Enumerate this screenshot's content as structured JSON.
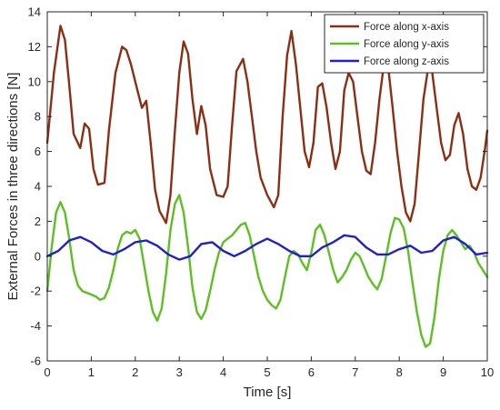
{
  "chart_data": {
    "type": "line",
    "title": "",
    "xlabel": "Time [s]",
    "ylabel": "External Forces in three directions [N]",
    "xlim": [
      0,
      10
    ],
    "ylim": [
      -6,
      14
    ],
    "xticks": [
      "0",
      "1",
      "2",
      "3",
      "4",
      "5",
      "6",
      "7",
      "8",
      "9",
      "10"
    ],
    "yticks": [
      "-6",
      "-4",
      "-2",
      "0",
      "2",
      "4",
      "6",
      "8",
      "10",
      "12",
      "14"
    ],
    "grid": false,
    "legend_position": "top-right",
    "series": [
      {
        "name": "Force along x-axis",
        "color": "#8B2E14",
        "x": [
          0,
          0.15,
          0.3,
          0.4,
          0.5,
          0.6,
          0.75,
          0.85,
          0.95,
          1.05,
          1.15,
          1.3,
          1.4,
          1.55,
          1.7,
          1.8,
          1.9,
          2.05,
          2.15,
          2.25,
          2.35,
          2.45,
          2.55,
          2.7,
          2.8,
          2.9,
          3.0,
          3.1,
          3.2,
          3.3,
          3.4,
          3.5,
          3.6,
          3.7,
          3.85,
          4.0,
          4.1,
          4.2,
          4.3,
          4.45,
          4.55,
          4.65,
          4.75,
          4.85,
          5.0,
          5.15,
          5.25,
          5.35,
          5.45,
          5.55,
          5.65,
          5.75,
          5.85,
          5.95,
          6.05,
          6.15,
          6.25,
          6.35,
          6.45,
          6.55,
          6.65,
          6.75,
          6.85,
          6.95,
          7.05,
          7.15,
          7.25,
          7.35,
          7.45,
          7.55,
          7.65,
          7.75,
          7.85,
          7.95,
          8.05,
          8.15,
          8.25,
          8.35,
          8.45,
          8.55,
          8.65,
          8.75,
          8.85,
          8.95,
          9.05,
          9.15,
          9.25,
          9.35,
          9.45,
          9.55,
          9.65,
          9.75,
          9.85,
          9.95,
          10.0
        ],
        "y": [
          6.5,
          10.5,
          13.2,
          12.4,
          9.8,
          7.0,
          6.2,
          7.6,
          7.3,
          5.0,
          4.1,
          4.2,
          7.2,
          10.5,
          12.0,
          11.8,
          11.0,
          9.5,
          8.5,
          8.9,
          6.5,
          3.8,
          2.6,
          1.9,
          3.5,
          7.2,
          10.5,
          12.3,
          11.6,
          9.0,
          7.0,
          8.6,
          7.5,
          5.0,
          3.5,
          3.4,
          4.0,
          7.5,
          10.6,
          11.3,
          10.0,
          8.0,
          6.0,
          4.5,
          3.5,
          2.8,
          3.5,
          8.0,
          11.5,
          12.9,
          11.0,
          8.5,
          6.0,
          5.1,
          6.5,
          9.7,
          9.9,
          8.5,
          6.5,
          5.0,
          6.0,
          9.5,
          10.5,
          10.0,
          8.0,
          6.0,
          4.9,
          4.7,
          6.5,
          9.0,
          11.0,
          10.8,
          8.5,
          6.0,
          4.0,
          2.5,
          2.0,
          3.0,
          6.0,
          9.0,
          10.7,
          10.5,
          8.5,
          6.5,
          5.5,
          5.8,
          7.5,
          8.2,
          7.0,
          5.0,
          4.0,
          3.8,
          4.5,
          6.2,
          7.2
        ]
      },
      {
        "name": "Force along y-axis",
        "color": "#5DC021",
        "x": [
          0,
          0.1,
          0.2,
          0.3,
          0.4,
          0.5,
          0.6,
          0.7,
          0.8,
          0.9,
          1.0,
          1.1,
          1.2,
          1.3,
          1.4,
          1.5,
          1.6,
          1.7,
          1.8,
          1.9,
          2.0,
          2.1,
          2.2,
          2.3,
          2.4,
          2.5,
          2.6,
          2.7,
          2.8,
          2.9,
          3.0,
          3.1,
          3.2,
          3.3,
          3.4,
          3.5,
          3.6,
          3.7,
          3.8,
          3.9,
          4.0,
          4.1,
          4.2,
          4.3,
          4.4,
          4.5,
          4.6,
          4.7,
          4.8,
          4.9,
          5.0,
          5.1,
          5.2,
          5.3,
          5.4,
          5.5,
          5.6,
          5.7,
          5.8,
          5.9,
          6.0,
          6.1,
          6.2,
          6.3,
          6.4,
          6.5,
          6.6,
          6.7,
          6.8,
          6.9,
          7.0,
          7.1,
          7.2,
          7.3,
          7.4,
          7.5,
          7.6,
          7.7,
          7.8,
          7.9,
          8.0,
          8.1,
          8.2,
          8.3,
          8.4,
          8.5,
          8.6,
          8.7,
          8.8,
          8.9,
          9.0,
          9.1,
          9.2,
          9.3,
          9.4,
          9.5,
          9.6,
          9.7,
          9.8,
          9.9,
          10.0
        ],
        "y": [
          -2.0,
          0.5,
          2.5,
          3.1,
          2.5,
          1.0,
          -0.8,
          -1.7,
          -2.0,
          -2.1,
          -2.2,
          -2.3,
          -2.5,
          -2.4,
          -1.8,
          -0.8,
          0.4,
          1.2,
          1.4,
          1.3,
          1.5,
          1.0,
          -0.5,
          -2.0,
          -3.2,
          -3.7,
          -3.0,
          -1.0,
          1.5,
          3.0,
          3.5,
          2.5,
          0.5,
          -1.8,
          -3.2,
          -3.6,
          -3.1,
          -2.0,
          -0.8,
          0.2,
          0.8,
          1.0,
          1.2,
          1.5,
          1.8,
          1.9,
          1.2,
          0.0,
          -1.2,
          -2.0,
          -2.5,
          -2.8,
          -3.0,
          -2.5,
          -1.2,
          0.0,
          0.3,
          0.1,
          -0.4,
          -0.8,
          0.2,
          1.5,
          1.8,
          1.2,
          0.2,
          -0.8,
          -1.5,
          -1.2,
          -0.8,
          -0.2,
          0.2,
          0.0,
          -0.6,
          -1.2,
          -1.6,
          -1.9,
          -1.3,
          0.0,
          1.3,
          2.2,
          2.1,
          1.6,
          0.3,
          -1.5,
          -3.2,
          -4.5,
          -5.2,
          -5.0,
          -3.5,
          -1.3,
          0.3,
          1.2,
          1.5,
          1.2,
          0.8,
          0.4,
          0.6,
          0.2,
          -0.4,
          -0.8,
          -1.2
        ]
      },
      {
        "name": "Force along z-axis",
        "color": "#1F1FCF",
        "x": [
          0,
          0.25,
          0.5,
          0.75,
          1.0,
          1.25,
          1.5,
          1.75,
          2.0,
          2.25,
          2.5,
          2.75,
          3.0,
          3.25,
          3.5,
          3.75,
          4.0,
          4.25,
          4.5,
          4.75,
          5.0,
          5.25,
          5.5,
          5.75,
          6.0,
          6.25,
          6.5,
          6.75,
          7.0,
          7.25,
          7.5,
          7.75,
          8.0,
          8.25,
          8.5,
          8.75,
          9.0,
          9.25,
          9.5,
          9.75,
          10.0
        ],
        "y": [
          0.0,
          0.3,
          0.9,
          1.1,
          0.8,
          0.3,
          0.1,
          0.4,
          0.8,
          0.9,
          0.6,
          0.1,
          -0.2,
          0.0,
          0.7,
          0.8,
          0.3,
          0.0,
          0.3,
          0.7,
          1.0,
          0.7,
          0.3,
          0.0,
          0.0,
          0.5,
          0.8,
          1.2,
          1.1,
          0.5,
          0.1,
          0.1,
          0.4,
          0.6,
          0.2,
          0.3,
          0.9,
          1.1,
          0.7,
          0.1,
          0.2
        ]
      }
    ]
  }
}
